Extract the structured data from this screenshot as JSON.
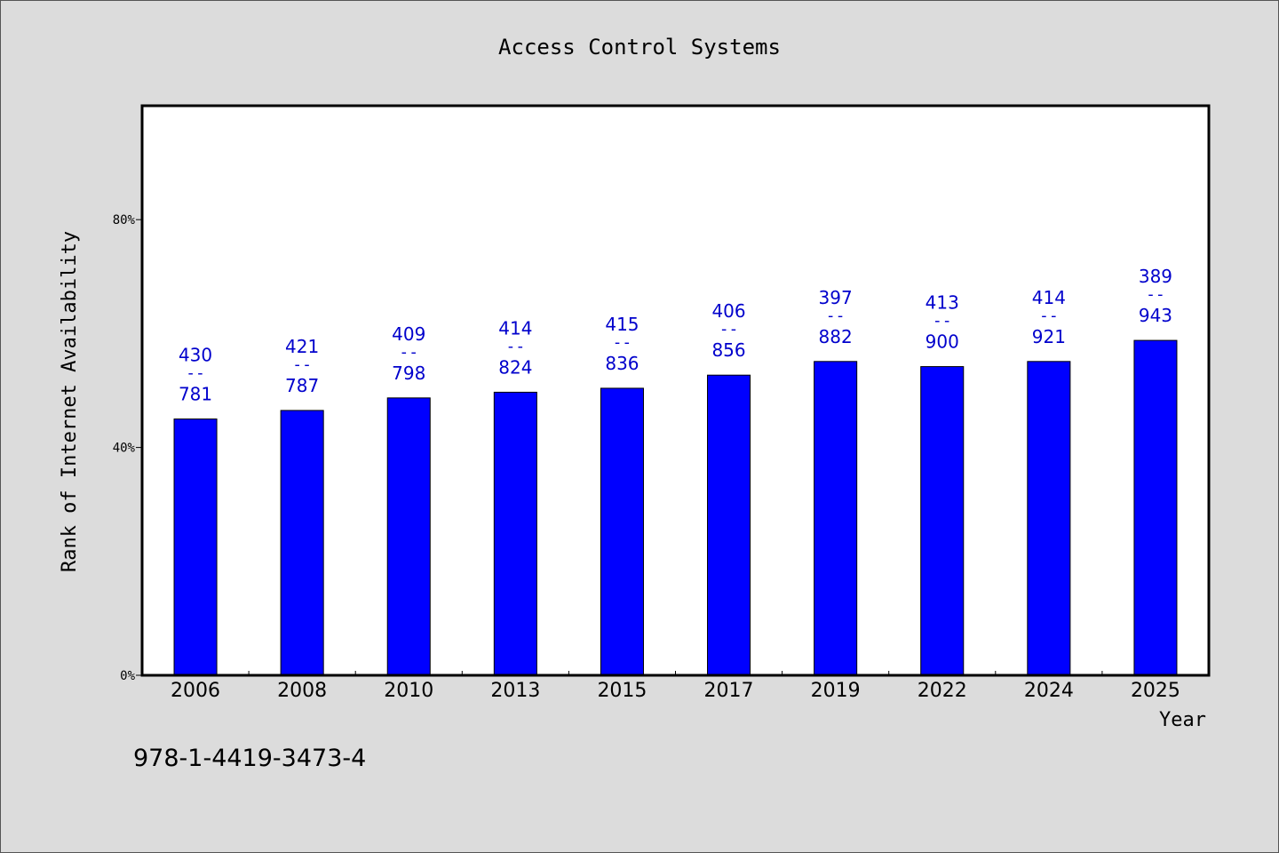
{
  "chart_data": {
    "type": "bar",
    "title": "Access Control Systems",
    "xlabel": "Year",
    "ylabel": "Rank of Internet Availability",
    "categories": [
      "2006",
      "2008",
      "2010",
      "2013",
      "2015",
      "2017",
      "2019",
      "2022",
      "2024",
      "2025"
    ],
    "values": [
      45,
      46.5,
      48.7,
      49.7,
      50.4,
      52.7,
      55.1,
      54.2,
      55.1,
      58.8
    ],
    "numerators": [
      430,
      421,
      409,
      414,
      415,
      406,
      397,
      413,
      414,
      389
    ],
    "denominators": [
      781,
      787,
      798,
      824,
      836,
      856,
      882,
      900,
      921,
      943
    ],
    "label_separator": "--",
    "ylim": [
      0,
      100
    ],
    "yticks": [
      0,
      40,
      80
    ],
    "ytick_labels": [
      "0%",
      "40%",
      "80%"
    ],
    "grid": false,
    "bar_color": "#0000ff",
    "label_color": "#0000cc"
  },
  "footer": {
    "isbn": "978-1-4419-3473-4"
  }
}
